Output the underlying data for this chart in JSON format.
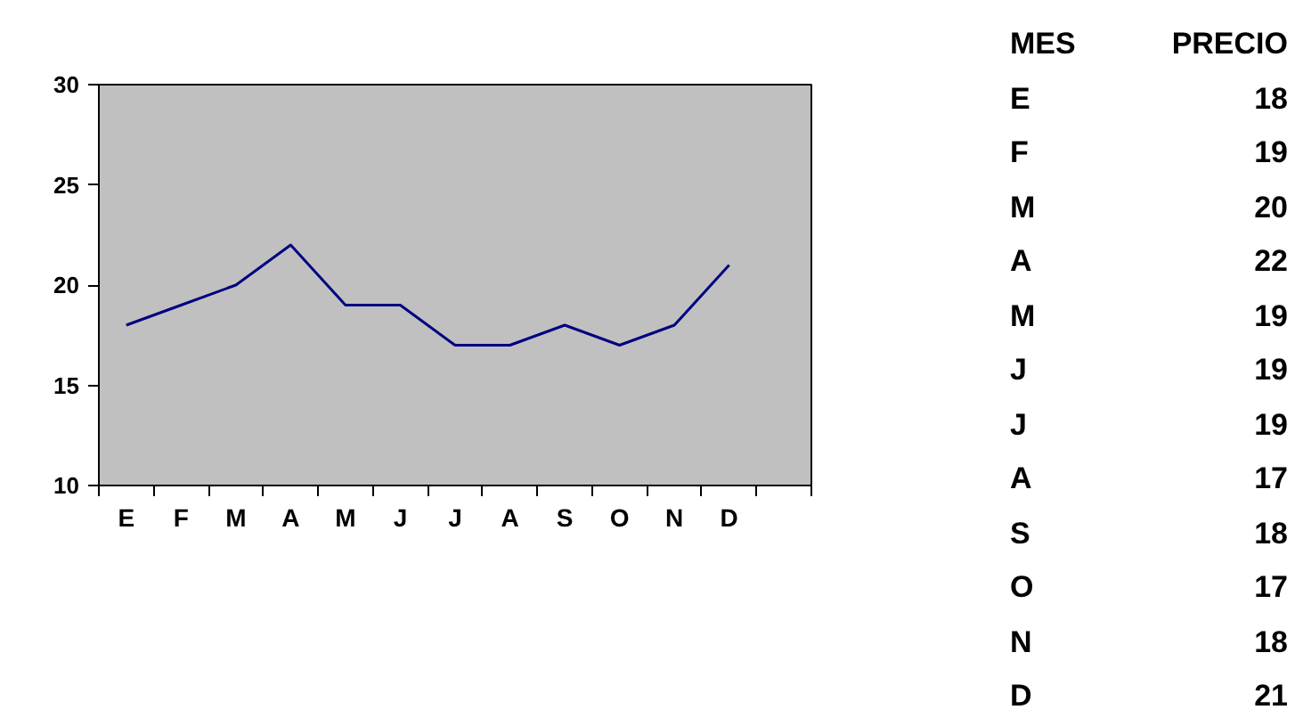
{
  "chart_data": [
    {
      "type": "line",
      "categories": [
        "E",
        "F",
        "M",
        "A",
        "M",
        "J",
        "J",
        "A",
        "S",
        "O",
        "N",
        "D",
        null
      ],
      "series": [
        {
          "color": "#000080",
          "values": [
            18,
            19,
            20,
            22,
            19,
            19,
            17,
            17,
            18,
            17,
            18,
            21,
            null
          ]
        }
      ],
      "ylim": [
        10,
        30
      ],
      "yticks": [
        10,
        15,
        20,
        25,
        30
      ],
      "grid": false,
      "marker": "none",
      "line_style": "solid"
    },
    {
      "type": "other",
      "annotations": [
        "MES",
        "PRECIO"
      ],
      "categories": [
        "E",
        "F",
        "M",
        "A",
        "M",
        "J",
        "J",
        "A",
        "S",
        "O",
        "N",
        "D"
      ],
      "values": [
        18,
        19,
        20,
        22,
        19,
        19,
        19,
        17,
        18,
        17,
        18,
        21
      ],
      "data_labels": true
    }
  ]
}
